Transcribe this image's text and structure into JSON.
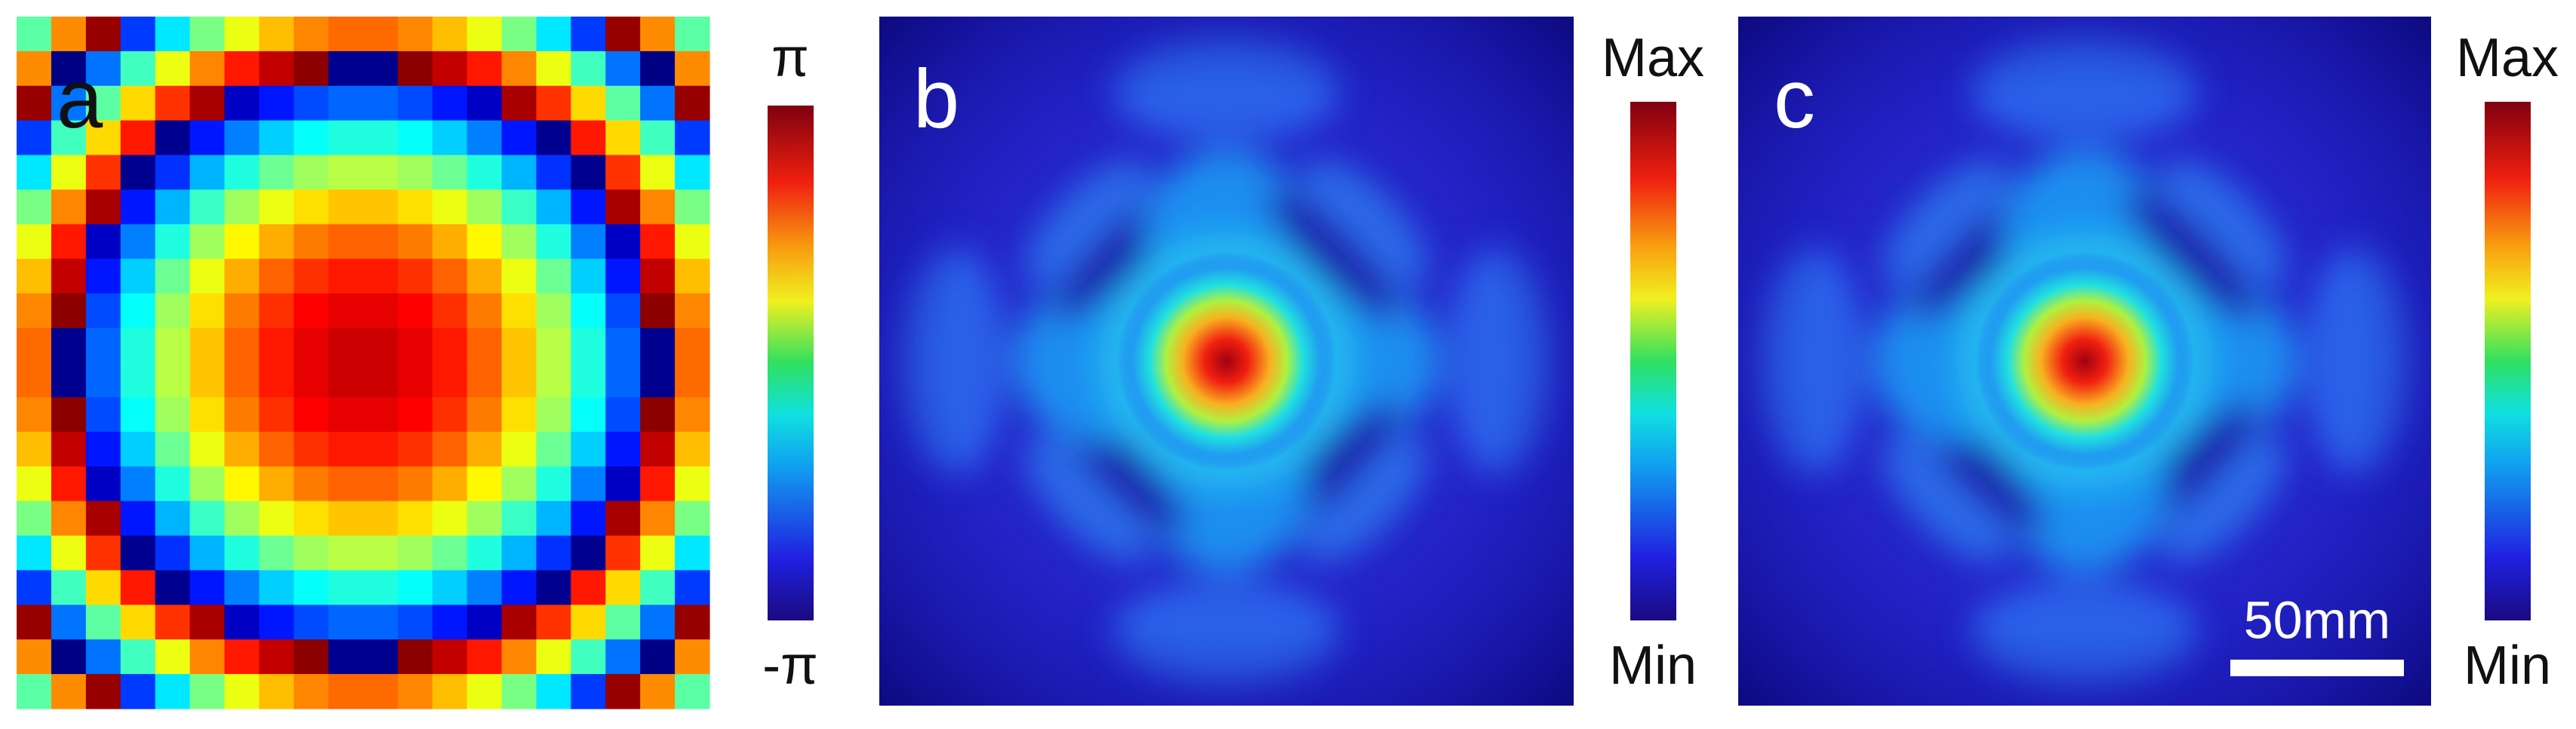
{
  "panels": [
    {
      "label": "a",
      "colorbar": {
        "max": "π",
        "min": "-π"
      }
    },
    {
      "label": "b",
      "colorbar": {
        "max": "Max",
        "min": "Min"
      }
    },
    {
      "label": "c",
      "colorbar": {
        "max": "Max",
        "min": "Min"
      },
      "scale_bar": "50mm"
    }
  ]
}
